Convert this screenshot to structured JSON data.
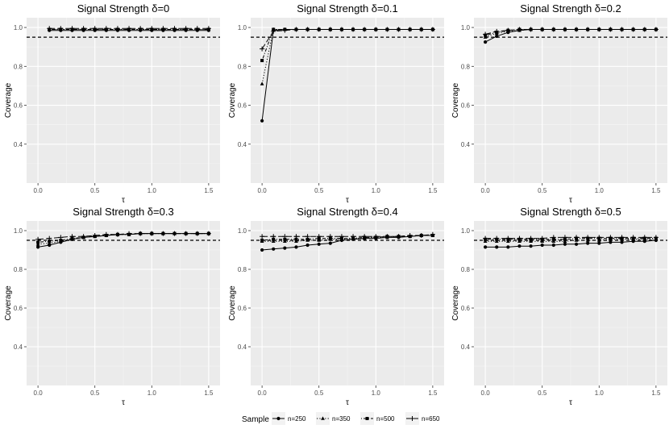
{
  "legend": {
    "title": "Sample",
    "entries": [
      {
        "name": "n=250",
        "linetype": "solid",
        "marker": "circle"
      },
      {
        "name": "n=350",
        "linetype": "dotted",
        "marker": "triangle"
      },
      {
        "name": "n=500",
        "linetype": "dotdash",
        "marker": "square"
      },
      {
        "name": "n=650",
        "linetype": "longdash",
        "marker": "cross"
      }
    ]
  },
  "chart_data": [
    {
      "type": "line",
      "title": "Signal Strength δ=0",
      "xlabel": "τ",
      "ylabel": "Coverage",
      "xlim": [
        -0.1,
        1.6
      ],
      "ylim": [
        0.2,
        1.05
      ],
      "xticks": [
        "0.0",
        "0.5",
        "1.0",
        "1.5"
      ],
      "yticks": [
        "0.4",
        "0.6",
        "0.8",
        "1.0"
      ],
      "reference_line": 0.95,
      "x": [
        0.1,
        0.2,
        0.3,
        0.4,
        0.5,
        0.6,
        0.7,
        0.8,
        0.9,
        1.0,
        1.1,
        1.2,
        1.3,
        1.4,
        1.5
      ],
      "series": [
        {
          "name": "n=250",
          "values": [
            0.985,
            0.985,
            0.985,
            0.985,
            0.985,
            0.985,
            0.985,
            0.985,
            0.985,
            0.985,
            0.985,
            0.985,
            0.985,
            0.985,
            0.985
          ]
        },
        {
          "name": "n=350",
          "values": [
            0.99,
            0.99,
            0.99,
            0.99,
            0.99,
            0.99,
            0.99,
            0.99,
            0.99,
            0.99,
            0.99,
            0.99,
            0.99,
            0.99,
            0.99
          ]
        },
        {
          "name": "n=500",
          "values": [
            0.99,
            0.99,
            0.99,
            0.99,
            0.99,
            0.99,
            0.99,
            0.99,
            0.99,
            0.99,
            0.99,
            0.99,
            0.99,
            0.99,
            0.99
          ]
        },
        {
          "name": "n=650",
          "values": [
            0.995,
            0.995,
            0.995,
            0.995,
            0.995,
            0.995,
            0.995,
            0.995,
            0.995,
            0.995,
            0.995,
            0.995,
            0.995,
            0.995,
            0.995
          ]
        }
      ]
    },
    {
      "type": "line",
      "title": "Signal Strength δ=0.1",
      "xlabel": "τ",
      "ylabel": "Coverage",
      "xlim": [
        -0.1,
        1.6
      ],
      "ylim": [
        0.2,
        1.05
      ],
      "xticks": [
        "0.0",
        "0.5",
        "1.0",
        "1.5"
      ],
      "yticks": [
        "0.4",
        "0.6",
        "0.8",
        "1.0"
      ],
      "reference_line": 0.95,
      "x": [
        0,
        0.1,
        0.2,
        0.3,
        0.4,
        0.5,
        0.6,
        0.7,
        0.8,
        0.9,
        1.0,
        1.1,
        1.2,
        1.3,
        1.4,
        1.5
      ],
      "series": [
        {
          "name": "n=250",
          "values": [
            0.52,
            0.985,
            0.99,
            0.99,
            0.99,
            0.99,
            0.99,
            0.99,
            0.99,
            0.99,
            0.99,
            0.99,
            0.99,
            0.99,
            0.99,
            0.99
          ]
        },
        {
          "name": "n=350",
          "values": [
            0.71,
            0.99,
            0.99,
            0.99,
            0.99,
            0.99,
            0.99,
            0.99,
            0.99,
            0.99,
            0.99,
            0.99,
            0.99,
            0.99,
            0.99,
            0.99
          ]
        },
        {
          "name": "n=500",
          "values": [
            0.83,
            0.99,
            0.99,
            0.99,
            0.99,
            0.99,
            0.99,
            0.99,
            0.99,
            0.99,
            0.99,
            0.99,
            0.99,
            0.99,
            0.99,
            0.99
          ]
        },
        {
          "name": "n=650",
          "values": [
            0.89,
            0.98,
            0.985,
            0.99,
            0.99,
            0.99,
            0.99,
            0.99,
            0.99,
            0.99,
            0.99,
            0.99,
            0.99,
            0.99,
            0.99,
            0.99
          ]
        }
      ]
    },
    {
      "type": "line",
      "title": "Signal Strength δ=0.2",
      "xlabel": "τ",
      "ylabel": "Coverage",
      "xlim": [
        -0.1,
        1.6
      ],
      "ylim": [
        0.2,
        1.05
      ],
      "xticks": [
        "0.0",
        "0.5",
        "1.0",
        "1.5"
      ],
      "yticks": [
        "0.4",
        "0.6",
        "0.8",
        "1.0"
      ],
      "reference_line": 0.95,
      "x": [
        0,
        0.1,
        0.2,
        0.3,
        0.4,
        0.5,
        0.6,
        0.7,
        0.8,
        0.9,
        1.0,
        1.1,
        1.2,
        1.3,
        1.4,
        1.5
      ],
      "series": [
        {
          "name": "n=250",
          "values": [
            0.925,
            0.955,
            0.975,
            0.985,
            0.99,
            0.99,
            0.99,
            0.99,
            0.99,
            0.99,
            0.99,
            0.99,
            0.99,
            0.99,
            0.99,
            0.99
          ]
        },
        {
          "name": "n=350",
          "values": [
            0.95,
            0.97,
            0.98,
            0.985,
            0.99,
            0.99,
            0.99,
            0.99,
            0.99,
            0.99,
            0.99,
            0.99,
            0.99,
            0.99,
            0.99,
            0.99
          ]
        },
        {
          "name": "n=500",
          "values": [
            0.96,
            0.975,
            0.985,
            0.99,
            0.99,
            0.99,
            0.99,
            0.99,
            0.99,
            0.99,
            0.99,
            0.99,
            0.99,
            0.99,
            0.99,
            0.99
          ]
        },
        {
          "name": "n=650",
          "values": [
            0.965,
            0.98,
            0.985,
            0.99,
            0.99,
            0.99,
            0.99,
            0.99,
            0.99,
            0.99,
            0.99,
            0.99,
            0.99,
            0.99,
            0.99,
            0.99
          ]
        }
      ]
    },
    {
      "type": "line",
      "title": "Signal Strength δ=0.3",
      "xlabel": "τ",
      "ylabel": "Coverage",
      "xlim": [
        -0.1,
        1.6
      ],
      "ylim": [
        0.2,
        1.05
      ],
      "xticks": [
        "0.0",
        "0.5",
        "1.0",
        "1.5"
      ],
      "yticks": [
        "0.4",
        "0.6",
        "0.8",
        "1.0"
      ],
      "reference_line": 0.95,
      "x": [
        0,
        0.1,
        0.2,
        0.3,
        0.4,
        0.5,
        0.6,
        0.7,
        0.8,
        0.9,
        1.0,
        1.1,
        1.2,
        1.3,
        1.4,
        1.5
      ],
      "series": [
        {
          "name": "n=250",
          "values": [
            0.915,
            0.925,
            0.94,
            0.955,
            0.965,
            0.97,
            0.975,
            0.98,
            0.98,
            0.985,
            0.985,
            0.985,
            0.985,
            0.985,
            0.985,
            0.985
          ]
        },
        {
          "name": "n=350",
          "values": [
            0.93,
            0.935,
            0.945,
            0.955,
            0.965,
            0.97,
            0.975,
            0.98,
            0.98,
            0.985,
            0.985,
            0.985,
            0.985,
            0.985,
            0.985,
            0.985
          ]
        },
        {
          "name": "n=500",
          "values": [
            0.94,
            0.945,
            0.95,
            0.96,
            0.965,
            0.97,
            0.975,
            0.98,
            0.98,
            0.985,
            0.985,
            0.985,
            0.985,
            0.985,
            0.985,
            0.985
          ]
        },
        {
          "name": "n=650",
          "values": [
            0.955,
            0.96,
            0.965,
            0.97,
            0.97,
            0.975,
            0.98,
            0.98,
            0.985,
            0.985,
            0.985,
            0.985,
            0.985,
            0.985,
            0.985,
            0.985
          ]
        }
      ]
    },
    {
      "type": "line",
      "title": "Signal Strength δ=0.4",
      "xlabel": "τ",
      "ylabel": "Coverage",
      "xlim": [
        -0.1,
        1.6
      ],
      "ylim": [
        0.2,
        1.05
      ],
      "xticks": [
        "0.0",
        "0.5",
        "1.0",
        "1.5"
      ],
      "yticks": [
        "0.4",
        "0.6",
        "0.8",
        "1.0"
      ],
      "reference_line": 0.95,
      "x": [
        0,
        0.1,
        0.2,
        0.3,
        0.4,
        0.5,
        0.6,
        0.7,
        0.8,
        0.9,
        1.0,
        1.1,
        1.2,
        1.3,
        1.4,
        1.5
      ],
      "series": [
        {
          "name": "n=250",
          "values": [
            0.9,
            0.905,
            0.91,
            0.915,
            0.925,
            0.93,
            0.935,
            0.95,
            0.955,
            0.96,
            0.96,
            0.965,
            0.965,
            0.97,
            0.975,
            0.975
          ]
        },
        {
          "name": "n=350",
          "values": [
            0.945,
            0.945,
            0.945,
            0.945,
            0.95,
            0.95,
            0.955,
            0.955,
            0.96,
            0.96,
            0.965,
            0.965,
            0.97,
            0.97,
            0.975,
            0.975
          ]
        },
        {
          "name": "n=500",
          "values": [
            0.95,
            0.955,
            0.955,
            0.955,
            0.955,
            0.96,
            0.96,
            0.96,
            0.96,
            0.965,
            0.965,
            0.97,
            0.97,
            0.97,
            0.975,
            0.975
          ]
        },
        {
          "name": "n=650",
          "values": [
            0.97,
            0.97,
            0.97,
            0.97,
            0.97,
            0.97,
            0.97,
            0.97,
            0.97,
            0.97,
            0.97,
            0.97,
            0.97,
            0.975,
            0.975,
            0.98
          ]
        }
      ]
    },
    {
      "type": "line",
      "title": "Signal Strength δ=0.5",
      "xlabel": "τ",
      "ylabel": "Coverage",
      "xlim": [
        -0.1,
        1.6
      ],
      "ylim": [
        0.2,
        1.05
      ],
      "xticks": [
        "0.0",
        "0.5",
        "1.0",
        "1.5"
      ],
      "yticks": [
        "0.4",
        "0.6",
        "0.8",
        "1.0"
      ],
      "reference_line": 0.95,
      "x": [
        0,
        0.1,
        0.2,
        0.3,
        0.4,
        0.5,
        0.6,
        0.7,
        0.8,
        0.9,
        1.0,
        1.1,
        1.2,
        1.3,
        1.4,
        1.5
      ],
      "series": [
        {
          "name": "n=250",
          "values": [
            0.915,
            0.915,
            0.915,
            0.92,
            0.92,
            0.925,
            0.925,
            0.93,
            0.93,
            0.935,
            0.935,
            0.94,
            0.94,
            0.945,
            0.945,
            0.95
          ]
        },
        {
          "name": "n=350",
          "values": [
            0.945,
            0.945,
            0.945,
            0.945,
            0.945,
            0.945,
            0.945,
            0.945,
            0.95,
            0.95,
            0.95,
            0.955,
            0.955,
            0.955,
            0.955,
            0.955
          ]
        },
        {
          "name": "n=500",
          "values": [
            0.955,
            0.955,
            0.955,
            0.955,
            0.955,
            0.955,
            0.955,
            0.955,
            0.96,
            0.96,
            0.96,
            0.96,
            0.96,
            0.96,
            0.96,
            0.96
          ]
        },
        {
          "name": "n=650",
          "values": [
            0.96,
            0.96,
            0.96,
            0.96,
            0.96,
            0.96,
            0.965,
            0.965,
            0.965,
            0.965,
            0.965,
            0.965,
            0.965,
            0.965,
            0.965,
            0.965
          ]
        }
      ]
    }
  ]
}
